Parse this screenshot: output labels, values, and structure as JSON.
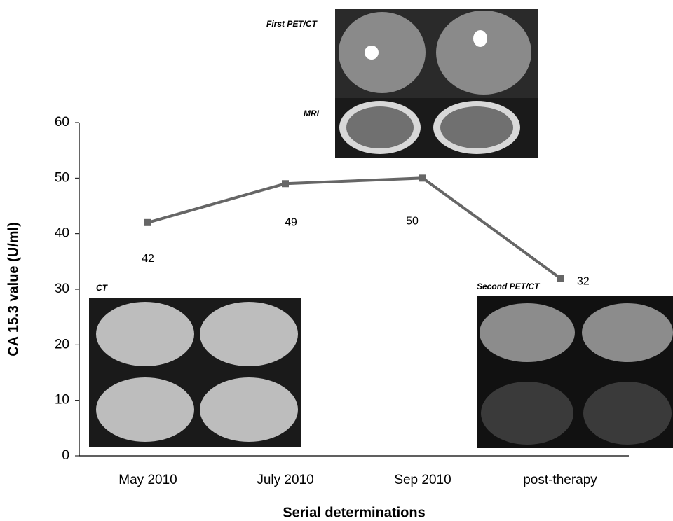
{
  "chart_data": {
    "type": "line",
    "x_label": "Serial determinations",
    "y_label": "CA 15.3 value (U/ml)",
    "categories": [
      "May 2010",
      "July 2010",
      "Sep 2010",
      "post-therapy"
    ],
    "series": [
      {
        "values": [
          42,
          49,
          50,
          32
        ],
        "color": "#666666"
      }
    ],
    "ylim": [
      0,
      60
    ],
    "yticks": [
      0,
      10,
      20,
      30,
      40,
      50,
      60
    ],
    "annotations": [
      "First PET/CT",
      "MRI",
      "CT",
      "Second PET/CT"
    ]
  }
}
